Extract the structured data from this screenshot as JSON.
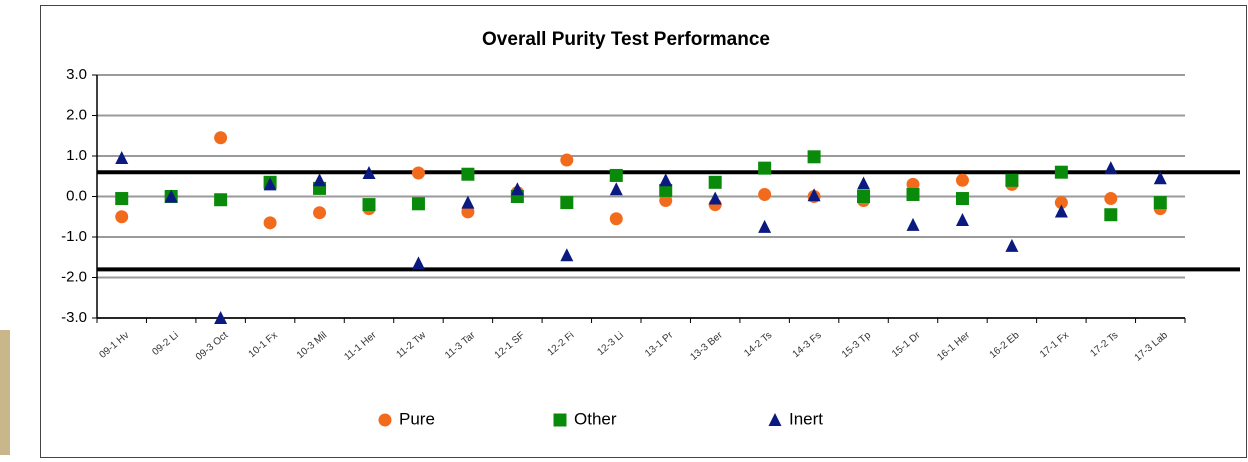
{
  "chart_data": {
    "type": "scatter",
    "title": "Overall  Purity Test Performance",
    "categories": [
      "09-1 Hv",
      "09-2 Li",
      "09-3 Oct",
      "10-1 Fx",
      "10-3 Mil",
      "11-1 Her",
      "11-2 Tw",
      "11-3 Tar",
      "12-1 SF",
      "12-2 Fi",
      "12-3 Li",
      "13-1 Pr",
      "13-3 Ber",
      "14-2 Ts",
      "14-3 Fs",
      "15-3 Tp",
      "15-1 Dr",
      "16-1 Her",
      "16-2 Eb",
      "17-1 Fx",
      "17-2 Ts",
      "17-3 Lab"
    ],
    "series": [
      {
        "name": "Pure",
        "color": "#f26b1d",
        "marker": "circle",
        "values": [
          -0.5,
          0.0,
          1.45,
          -0.65,
          -0.4,
          -0.3,
          0.58,
          -0.38,
          0.1,
          0.9,
          -0.55,
          -0.1,
          -0.2,
          0.05,
          0.0,
          -0.1,
          0.3,
          0.4,
          0.3,
          -0.15,
          -0.05,
          -0.3
        ]
      },
      {
        "name": "Other",
        "color": "#0a8a0a",
        "marker": "square",
        "values": [
          -0.05,
          0.0,
          -0.08,
          0.35,
          0.2,
          -0.2,
          -0.18,
          0.55,
          0.0,
          -0.15,
          0.52,
          0.15,
          0.35,
          0.7,
          0.98,
          0.0,
          0.05,
          -0.05,
          0.4,
          0.6,
          -0.45,
          -0.15
        ]
      },
      {
        "name": "Inert",
        "color": "#0b1a80",
        "marker": "triangle",
        "values": [
          0.95,
          0.0,
          -3.0,
          0.3,
          0.4,
          0.58,
          -1.65,
          -0.15,
          0.18,
          -1.45,
          0.18,
          0.4,
          -0.05,
          -0.75,
          0.03,
          0.32,
          -0.7,
          -0.58,
          -1.22,
          -0.37,
          0.7,
          0.45
        ]
      }
    ],
    "ylim": [
      -3,
      3
    ],
    "yticks": [
      {
        "value": -3,
        "label": "-3.0"
      },
      {
        "value": -2,
        "label": "-2.0"
      },
      {
        "value": -1,
        "label": "-1.0"
      },
      {
        "value": 0,
        "label": "0.0"
      },
      {
        "value": 1,
        "label": "1.0"
      },
      {
        "value": 2,
        "label": "2.0"
      },
      {
        "value": 3,
        "label": "3.0"
      }
    ],
    "reference_lines": [
      0.6,
      -1.8
    ],
    "grid": true
  }
}
